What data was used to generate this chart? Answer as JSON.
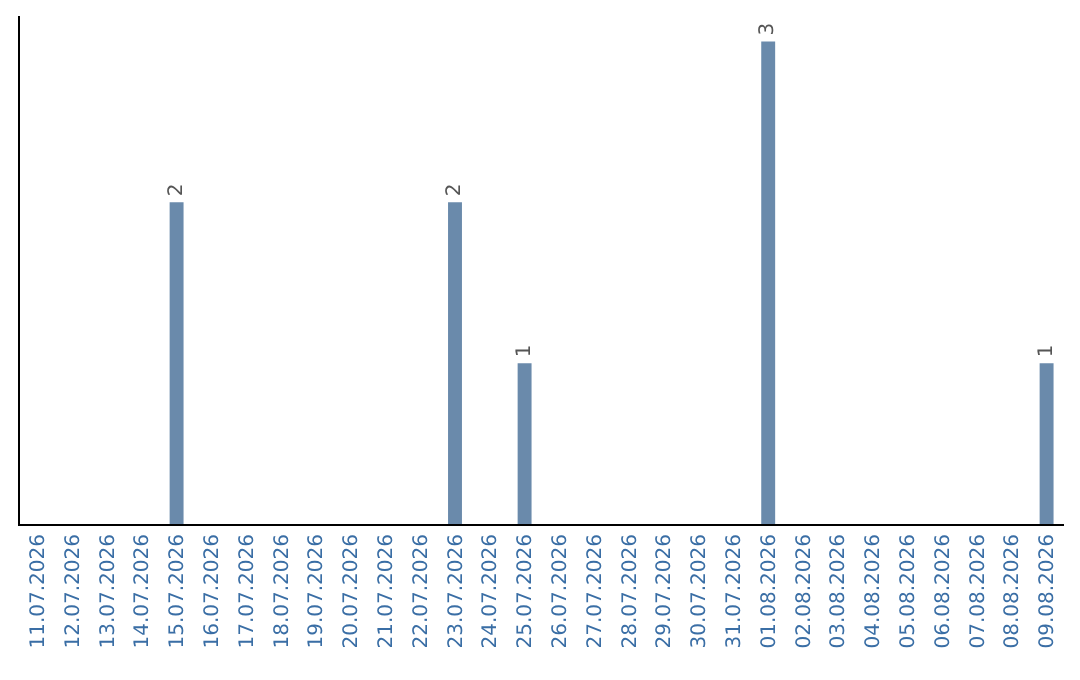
{
  "chart_data": {
    "type": "bar",
    "categories": [
      "11.07.2026",
      "12.07.2026",
      "13.07.2026",
      "14.07.2026",
      "15.07.2026",
      "16.07.2026",
      "17.07.2026",
      "18.07.2026",
      "19.07.2026",
      "20.07.2026",
      "21.07.2026",
      "22.07.2026",
      "23.07.2026",
      "24.07.2026",
      "25.07.2026",
      "26.07.2026",
      "27.07.2026",
      "28.07.2026",
      "29.07.2026",
      "30.07.2026",
      "31.07.2026",
      "01.08.2026",
      "02.08.2026",
      "03.08.2026",
      "04.08.2026",
      "05.08.2026",
      "06.08.2026",
      "07.08.2026",
      "08.08.2026",
      "09.08.2026"
    ],
    "values": [
      0,
      0,
      0,
      0,
      2,
      0,
      0,
      0,
      0,
      0,
      0,
      0,
      2,
      0,
      1,
      0,
      0,
      0,
      0,
      0,
      0,
      3,
      0,
      0,
      0,
      0,
      0,
      0,
      0,
      1
    ],
    "color": "#6a8aab",
    "value_labels": [
      null,
      null,
      null,
      null,
      "2",
      null,
      null,
      null,
      null,
      null,
      null,
      null,
      "2",
      null,
      "1",
      null,
      null,
      null,
      null,
      null,
      null,
      "3",
      null,
      null,
      null,
      null,
      null,
      null,
      null,
      "1"
    ],
    "tick_labels": "x"
  }
}
